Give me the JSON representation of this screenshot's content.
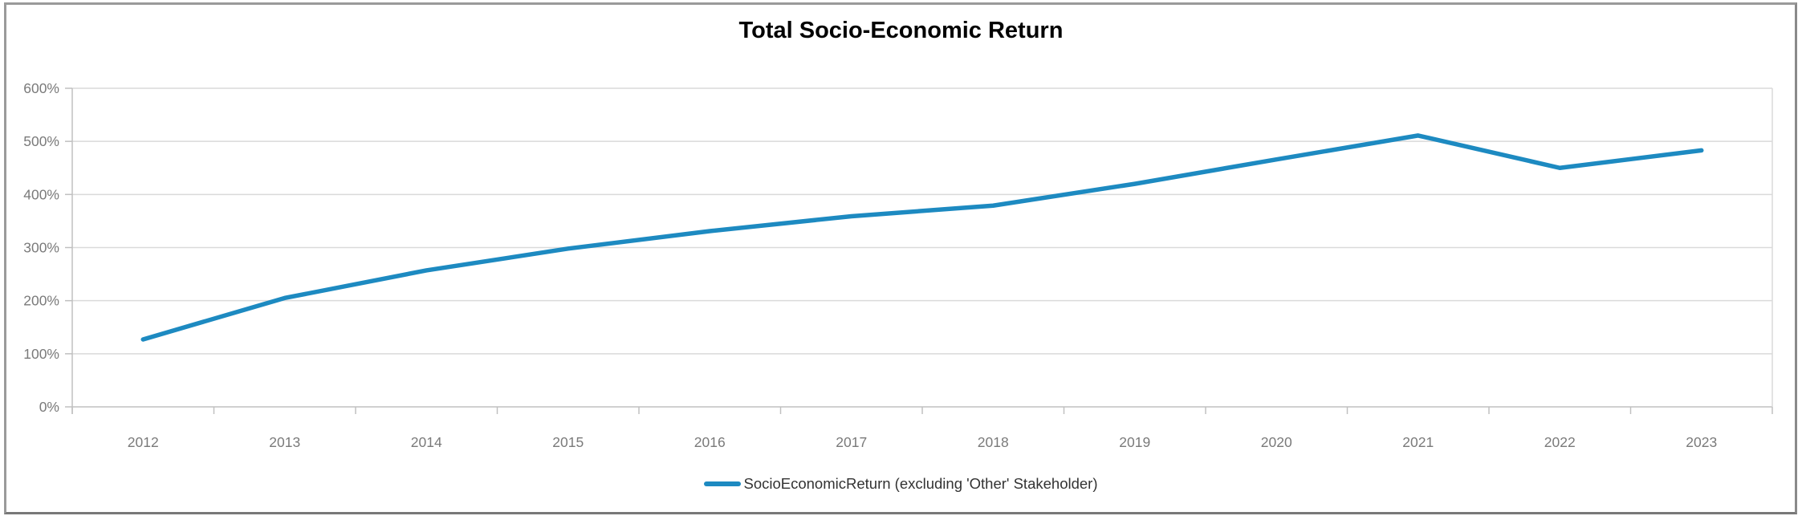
{
  "chart_data": {
    "type": "line",
    "title": "Total Socio-Economic Return",
    "categories": [
      "2012",
      "2013",
      "2014",
      "2015",
      "2016",
      "2017",
      "2018",
      "2019",
      "2020",
      "2021",
      "2022",
      "2023"
    ],
    "series": [
      {
        "name": "SocioEconomicReturn (excluding 'Other' Stakeholder)",
        "values": [
          127,
          205,
          257,
          298,
          331,
          359,
          379,
          420,
          466,
          511,
          450,
          483
        ]
      }
    ],
    "value_unit": "percent",
    "ylabel": "",
    "xlabel": "",
    "ylim": [
      0,
      600
    ],
    "y_ticks": [
      "0%",
      "100%",
      "200%",
      "300%",
      "400%",
      "500%",
      "600%"
    ],
    "y_tick_step": 100,
    "grid": true,
    "legend_position": "bottom",
    "colors": {
      "line": "#1d8ac1",
      "grid": "#dadada",
      "axis": "#c0c0c0",
      "tick_label": "#7a7a7a",
      "legend_text": "#333333",
      "title": "#000000"
    }
  }
}
